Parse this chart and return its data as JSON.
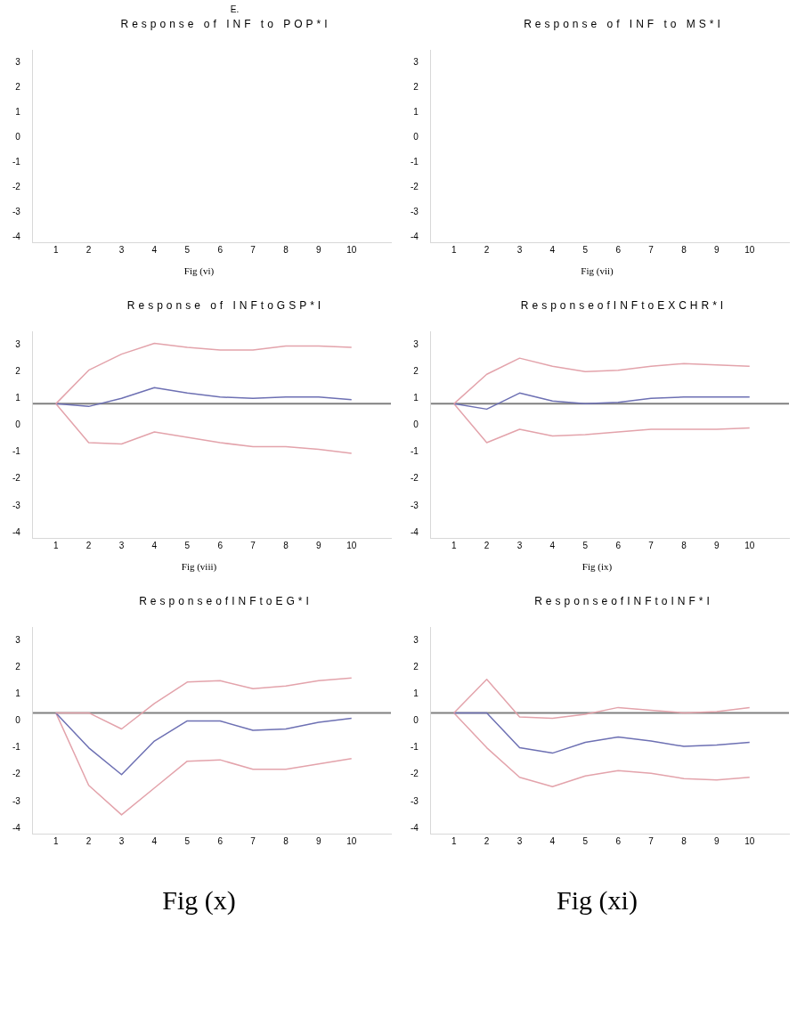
{
  "chart_data": [
    {
      "type": "line",
      "subtitle": "E.",
      "title": "Response of INF to POP*I",
      "annotations": [
        "Fig (vi)"
      ],
      "xlim": [
        0.3,
        11.2
      ],
      "xticks": [
        1,
        2,
        3,
        4,
        5,
        6,
        7,
        8,
        9,
        10
      ],
      "ylim": [
        -4.2,
        3.5
      ],
      "yticks": [
        3,
        2,
        1,
        0,
        -1,
        -2,
        -3,
        -4
      ]
    },
    {
      "type": "line",
      "title": "Response of INF to MS*I",
      "annotations": [
        "Fig (vii)"
      ],
      "xlim": [
        0.3,
        11.2
      ],
      "xticks": [
        1,
        2,
        3,
        4,
        5,
        6,
        7,
        8,
        9,
        10
      ],
      "ylim": [
        -4.2,
        3.5
      ],
      "yticks": [
        3,
        2,
        1,
        0,
        -1,
        -2,
        -3,
        -4
      ]
    },
    {
      "type": "line",
      "title": "Response of INFtoGSP*I",
      "annotations": [
        "Fig (viii)"
      ],
      "x": [
        1,
        2,
        3,
        4,
        5,
        6,
        7,
        8,
        9,
        10
      ],
      "xlim": [
        0.3,
        11.2
      ],
      "xticks": [
        1,
        2,
        3,
        4,
        5,
        6,
        7,
        8,
        9,
        10
      ],
      "ylim": [
        -4.2,
        3.5
      ],
      "yticks": [
        3,
        2,
        1,
        0,
        -1,
        -2,
        -3,
        -4
      ],
      "ref_lines": [
        {
          "axis": "y",
          "value": 0.8,
          "color": "#808080"
        }
      ],
      "series": [
        {
          "color": "#e3a3ab",
          "values": [
            0.8,
            2.05,
            2.65,
            3.05,
            2.9,
            2.8,
            2.8,
            2.95,
            2.95,
            2.9
          ]
        },
        {
          "color": "#6d70b3",
          "values": [
            0.8,
            0.7,
            1.0,
            1.4,
            1.2,
            1.05,
            1.0,
            1.05,
            1.05,
            0.95
          ]
        },
        {
          "color": "#e3a3ab",
          "values": [
            0.8,
            -0.65,
            -0.7,
            -0.25,
            -0.45,
            -0.65,
            -0.8,
            -0.8,
            -0.9,
            -1.05
          ]
        }
      ]
    },
    {
      "type": "line",
      "title": "ResponseofINFtoEXCHR*I",
      "annotations": [
        "Fig (ix)"
      ],
      "x": [
        1,
        2,
        3,
        4,
        5,
        6,
        7,
        8,
        9,
        10
      ],
      "xlim": [
        0.3,
        11.2
      ],
      "xticks": [
        1,
        2,
        3,
        4,
        5,
        6,
        7,
        8,
        9,
        10
      ],
      "ylim": [
        -4.2,
        3.5
      ],
      "yticks": [
        3,
        2,
        1,
        0,
        -1,
        -2,
        -3,
        -4
      ],
      "ref_lines": [
        {
          "axis": "y",
          "value": 0.8,
          "color": "#808080"
        }
      ],
      "series": [
        {
          "color": "#e3a3ab",
          "values": [
            0.8,
            1.9,
            2.5,
            2.2,
            2.0,
            2.05,
            2.2,
            2.3,
            2.25,
            2.2
          ]
        },
        {
          "color": "#6d70b3",
          "values": [
            0.8,
            0.6,
            1.2,
            0.9,
            0.8,
            0.85,
            1.0,
            1.05,
            1.05,
            1.05
          ]
        },
        {
          "color": "#e3a3ab",
          "values": [
            0.8,
            -0.65,
            -0.15,
            -0.4,
            -0.35,
            -0.25,
            -0.15,
            -0.15,
            -0.15,
            -0.1
          ]
        }
      ]
    },
    {
      "type": "line",
      "title": "ResponseofINFtoEG*I",
      "annotations": [
        "Fig (x)"
      ],
      "x": [
        1,
        2,
        3,
        4,
        5,
        6,
        7,
        8,
        9,
        10
      ],
      "xlim": [
        0.3,
        11.2
      ],
      "xticks": [
        1,
        2,
        3,
        4,
        5,
        6,
        7,
        8,
        9,
        10
      ],
      "ylim": [
        -4.2,
        3.5
      ],
      "yticks": [
        3,
        2,
        1,
        0,
        -1,
        -2,
        -3,
        -4
      ],
      "ref_lines": [
        {
          "axis": "y",
          "value": 0.3,
          "color": "#808080"
        }
      ],
      "series": [
        {
          "color": "#e3a3ab",
          "values": [
            0.3,
            0.3,
            -0.3,
            0.65,
            1.45,
            1.5,
            1.2,
            1.3,
            1.5,
            1.6
          ]
        },
        {
          "color": "#6d70b3",
          "values": [
            0.3,
            -1.0,
            -2.0,
            -0.75,
            0.0,
            0.0,
            -0.35,
            -0.3,
            -0.05,
            0.1
          ]
        },
        {
          "color": "#e3a3ab",
          "values": [
            0.3,
            -2.4,
            -3.5,
            -2.5,
            -1.5,
            -1.45,
            -1.8,
            -1.8,
            -1.6,
            -1.4
          ]
        }
      ]
    },
    {
      "type": "line",
      "title": "ResponseofINFtoINF*I",
      "annotations": [
        "Fig (xi)"
      ],
      "x": [
        1,
        2,
        3,
        4,
        5,
        6,
        7,
        8,
        9,
        10
      ],
      "xlim": [
        0.3,
        11.2
      ],
      "xticks": [
        1,
        2,
        3,
        4,
        5,
        6,
        7,
        8,
        9,
        10
      ],
      "ylim": [
        -4.2,
        3.5
      ],
      "yticks": [
        3,
        2,
        1,
        0,
        -1,
        -2,
        -3,
        -4
      ],
      "ref_lines": [
        {
          "axis": "y",
          "value": 0.3,
          "color": "#808080"
        }
      ],
      "series": [
        {
          "color": "#e3a3ab",
          "values": [
            0.3,
            1.55,
            0.15,
            0.1,
            0.25,
            0.5,
            0.4,
            0.3,
            0.35,
            0.5
          ]
        },
        {
          "color": "#6d70b3",
          "values": [
            0.3,
            0.3,
            -1.0,
            -1.2,
            -0.8,
            -0.6,
            -0.75,
            -0.95,
            -0.9,
            -0.8
          ]
        },
        {
          "color": "#e3a3ab",
          "values": [
            0.3,
            -1.0,
            -2.1,
            -2.45,
            -2.05,
            -1.85,
            -1.95,
            -2.15,
            -2.2,
            -2.1
          ]
        }
      ]
    }
  ]
}
